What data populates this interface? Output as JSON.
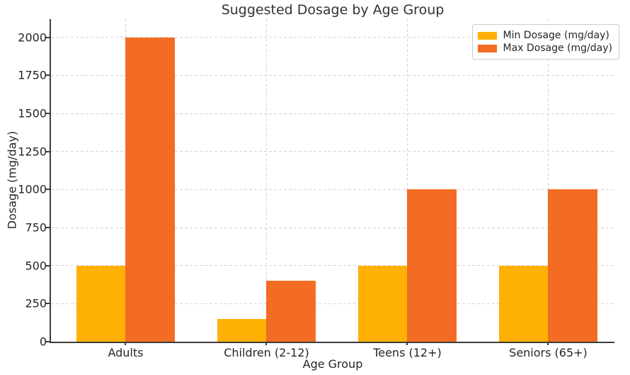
{
  "chart_data": {
    "type": "bar",
    "title": "Suggested Dosage by Age Group",
    "xlabel": "Age Group",
    "ylabel": "Dosage (mg/day)",
    "categories": [
      "Adults",
      "Children (2-12)",
      "Teens (12+)",
      "Seniors (65+)"
    ],
    "series": [
      {
        "name": "Min Dosage (mg/day)",
        "color": "#FFB005",
        "values": [
          500,
          150,
          500,
          500
        ]
      },
      {
        "name": "Max Dosage (mg/day)",
        "color": "#F26C23",
        "values": [
          2000,
          400,
          1000,
          1000
        ]
      }
    ],
    "yticks": [
      0,
      250,
      500,
      750,
      1000,
      1250,
      1500,
      1750,
      2000
    ],
    "ylim": [
      0,
      2120
    ],
    "grid": true,
    "grid_style": "dashed",
    "legend_position": "upper right",
    "background_color": "#FFFFFF",
    "text_color": "#262626",
    "spine_color": "#3C3C3C",
    "gridline_color": "#D4D4D4"
  }
}
